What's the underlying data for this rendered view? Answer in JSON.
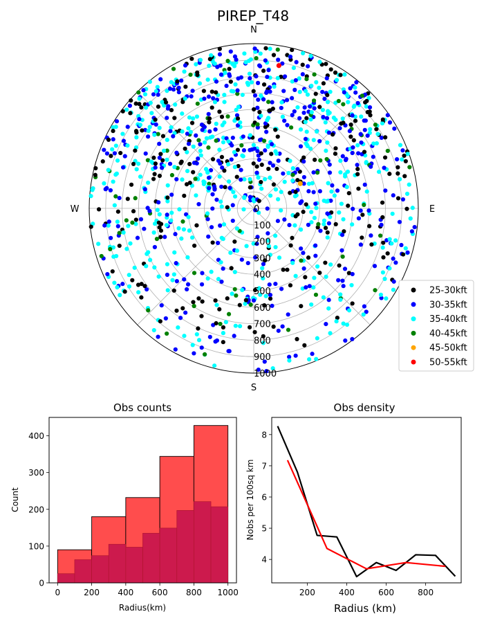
{
  "chart_data": [
    {
      "type": "scatter",
      "subtype": "polar",
      "title": "PIREP_T48",
      "compass": {
        "north": "N",
        "east": "E",
        "south": "S",
        "west": "W"
      },
      "r_ticks": [
        "0",
        "100",
        "200",
        "300",
        "400",
        "500",
        "600",
        "700",
        "800",
        "900",
        "1000"
      ],
      "rlim": [
        0,
        1000
      ],
      "grid": true,
      "legend_position": "right",
      "series": [
        {
          "name": "25-30kft",
          "color": "#000000"
        },
        {
          "name": "30-35kft",
          "color": "#0000ff"
        },
        {
          "name": "35-40kft",
          "color": "#00ffff"
        },
        {
          "name": "40-45kft",
          "color": "#008000"
        },
        {
          "name": "45-50kft",
          "color": "#ffa500"
        },
        {
          "name": "50-55kft",
          "color": "#ff0000"
        }
      ],
      "highlighted_points": [
        {
          "series": "45-50kft",
          "bearing_deg": 62,
          "range_km": 320
        },
        {
          "series": "50-55kft",
          "bearing_deg": 10,
          "range_km": 880
        }
      ]
    },
    {
      "type": "bar",
      "subtype": "histogram",
      "title": "Obs counts",
      "xlabel": "Radius(km)",
      "ylabel": "Count",
      "xlim": [
        -50,
        1050
      ],
      "ylim": [
        0,
        450
      ],
      "x_ticks": [
        "0",
        "200",
        "400",
        "600",
        "800",
        "1000"
      ],
      "y_ticks": [
        "0",
        "100",
        "200",
        "300",
        "400"
      ],
      "series": [
        {
          "bin_edges": [
            0,
            200,
            400,
            600,
            800,
            1000
          ],
          "values": [
            90,
            180,
            232,
            344,
            428
          ],
          "color": "#ff4d4d"
        },
        {
          "bin_edges": [
            0,
            100,
            200,
            300,
            400,
            500,
            600,
            700,
            800,
            900,
            1000
          ],
          "values": [
            25,
            63,
            74,
            105,
            97,
            135,
            149,
            197,
            221,
            207
          ],
          "color": "#cc1a4d"
        }
      ]
    },
    {
      "type": "line",
      "title": "Obs density",
      "xlabel": "Radius (km)",
      "ylabel": "Nobs per 100sq km",
      "xlim": [
        20,
        980
      ],
      "ylim": [
        3.25,
        8.55
      ],
      "x_ticks": [
        "200",
        "400",
        "600",
        "800"
      ],
      "y_ticks": [
        "4",
        "5",
        "6",
        "7",
        "8"
      ],
      "series": [
        {
          "x": [
            50,
            150,
            250,
            350,
            450,
            550,
            650,
            750,
            850,
            950
          ],
          "y": [
            8.27,
            6.8,
            4.77,
            4.72,
            3.45,
            3.9,
            3.65,
            4.15,
            4.13,
            3.46
          ],
          "color": "#000000"
        },
        {
          "x": [
            100,
            300,
            500,
            700,
            900
          ],
          "y": [
            7.18,
            4.35,
            3.7,
            3.9,
            3.78
          ],
          "color": "#ff0000"
        }
      ]
    }
  ]
}
